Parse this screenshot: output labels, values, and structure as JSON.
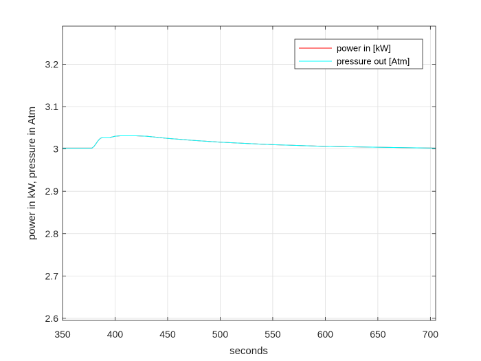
{
  "chart_data": {
    "type": "line",
    "title": "",
    "xlabel": "seconds",
    "ylabel": "power in kW, pressure in Atm",
    "xlim": [
      350,
      705
    ],
    "ylim": [
      2.595,
      3.29
    ],
    "xticks": [
      350,
      400,
      450,
      500,
      550,
      600,
      650,
      700
    ],
    "yticks": [
      2.6,
      2.7,
      2.8,
      2.9,
      3.0,
      3.1,
      3.2
    ],
    "ytick_labels": [
      "2.6",
      "2.7",
      "2.8",
      "2.9",
      "3",
      "3.1",
      "3.2"
    ],
    "grid": true,
    "legend_position": "top-right",
    "series": [
      {
        "name": "power in [kW]",
        "color": "#ff0000",
        "x": [
          350,
          378,
          380,
          382,
          384,
          386,
          388,
          390,
          395,
          400,
          405,
          410,
          420,
          430,
          450,
          475,
          500,
          525,
          550,
          575,
          600,
          625,
          650,
          675,
          705
        ],
        "y": [
          3.002,
          3.002,
          3.006,
          3.013,
          3.02,
          3.025,
          3.027,
          3.027,
          3.027,
          3.03,
          3.031,
          3.031,
          3.031,
          3.03,
          3.025,
          3.02,
          3.016,
          3.013,
          3.01,
          3.008,
          3.006,
          3.005,
          3.004,
          3.003,
          3.002
        ]
      },
      {
        "name": "pressure out [Atm]",
        "color": "#00ffff",
        "x": [
          350,
          378,
          380,
          382,
          384,
          386,
          388,
          390,
          395,
          400,
          405,
          410,
          420,
          430,
          450,
          475,
          500,
          525,
          550,
          575,
          600,
          625,
          650,
          675,
          705
        ],
        "y": [
          3.002,
          3.002,
          3.006,
          3.013,
          3.02,
          3.025,
          3.027,
          3.027,
          3.027,
          3.03,
          3.031,
          3.031,
          3.031,
          3.03,
          3.025,
          3.02,
          3.016,
          3.013,
          3.01,
          3.008,
          3.006,
          3.005,
          3.004,
          3.003,
          3.002
        ]
      }
    ]
  }
}
